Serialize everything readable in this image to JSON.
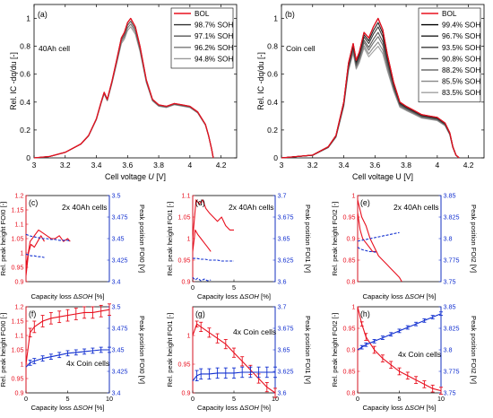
{
  "chart_data": [
    {
      "id": "a",
      "type": "line",
      "panel_label": "(a)",
      "annotation": "40Ah cell",
      "xlabel": "Cell voltage ",
      "xlabel_var": "U",
      "xlabel_unit": " [V]",
      "ylabel": "Rel. IC -dq/du [-]",
      "xlim": [
        3,
        4.3
      ],
      "ylim": [
        0,
        1.1
      ],
      "xticks": [
        "3",
        "3.2",
        "3.4",
        "3.6",
        "3.8",
        "4",
        "4.2"
      ],
      "yticks": [
        "0",
        "0.2",
        "0.4",
        "0.6",
        "0.8",
        "1"
      ],
      "legend_position": "top-right",
      "series": [
        {
          "name": "BOL",
          "color": "#e8101f",
          "peak_scale": 1.0
        },
        {
          "name": "98.7% SOH",
          "color": "#303030",
          "peak_scale": 1.0
        },
        {
          "name": "97.1% SOH",
          "color": "#555555",
          "peak_scale": 0.98
        },
        {
          "name": "96.2% SOH",
          "color": "#777777",
          "peak_scale": 0.96
        },
        {
          "name": "94.8% SOH",
          "color": "#999999",
          "peak_scale": 0.94
        }
      ],
      "x": [
        3.0,
        3.1,
        3.2,
        3.3,
        3.35,
        3.4,
        3.43,
        3.45,
        3.47,
        3.5,
        3.53,
        3.56,
        3.58,
        3.6,
        3.62,
        3.65,
        3.68,
        3.72,
        3.76,
        3.8,
        3.85,
        3.9,
        3.95,
        4.0,
        4.05,
        4.1,
        4.12,
        4.14,
        4.15
      ],
      "base_values": [
        0.0,
        0.01,
        0.04,
        0.1,
        0.16,
        0.28,
        0.4,
        0.47,
        0.42,
        0.55,
        0.7,
        0.86,
        0.9,
        0.97,
        1.0,
        0.94,
        0.8,
        0.56,
        0.42,
        0.38,
        0.37,
        0.39,
        0.38,
        0.37,
        0.33,
        0.24,
        0.16,
        0.06,
        0.0
      ]
    },
    {
      "id": "b",
      "type": "line",
      "panel_label": "(b)",
      "annotation": "Coin cell",
      "xlabel": "Cell voltage U [V]",
      "ylabel": "Rel. IC -dq/du [-]",
      "xlim": [
        3,
        4.3
      ],
      "ylim": [
        0,
        1.1
      ],
      "xticks": [
        "3",
        "3.2",
        "3.4",
        "3.6",
        "3.8",
        "4",
        "4.2"
      ],
      "yticks": [
        "0",
        "0.2",
        "0.4",
        "0.6",
        "0.8",
        "1"
      ],
      "legend_position": "top-right",
      "series": [
        {
          "name": "BOL",
          "color": "#e8101f",
          "peak_scale": 1.0
        },
        {
          "name": "99.4% SOH",
          "color": "#000000",
          "peak_scale": 1.0
        },
        {
          "name": "96.7% SOH",
          "color": "#1e1e1e",
          "peak_scale": 0.97
        },
        {
          "name": "93.5% SOH",
          "color": "#3a3a3a",
          "peak_scale": 0.94
        },
        {
          "name": "90.8% SOH",
          "color": "#555555",
          "peak_scale": 0.9
        },
        {
          "name": "88.2% SOH",
          "color": "#6e6e6e",
          "peak_scale": 0.87
        },
        {
          "name": "85.5% SOH",
          "color": "#888888",
          "peak_scale": 0.83
        },
        {
          "name": "83.5% SOH",
          "color": "#a0a0a0",
          "peak_scale": 0.8
        }
      ],
      "x": [
        3.0,
        3.2,
        3.3,
        3.35,
        3.4,
        3.43,
        3.46,
        3.48,
        3.5,
        3.53,
        3.56,
        3.59,
        3.62,
        3.65,
        3.68,
        3.72,
        3.76,
        3.8,
        3.85,
        3.9,
        3.95,
        4.0,
        4.05,
        4.08,
        4.1,
        4.12,
        4.14
      ],
      "base_values": [
        0.0,
        0.02,
        0.08,
        0.16,
        0.4,
        0.68,
        0.82,
        0.7,
        0.76,
        0.9,
        0.86,
        0.94,
        1.0,
        0.92,
        0.74,
        0.54,
        0.4,
        0.37,
        0.34,
        0.31,
        0.3,
        0.29,
        0.25,
        0.18,
        0.08,
        0.02,
        0.0
      ]
    },
    {
      "id": "c",
      "type": "line",
      "panel_label": "(c)",
      "annotation": "2x 40Ah cells",
      "xlabel": "Capacity loss Δ",
      "xlabel_var": "SOH",
      "xlabel_unit": " [%]",
      "ylabel_left": "Rel. peak height FOI0 [-]",
      "ylabel_right": "Peak position FOI0 [V]",
      "xlim": [
        0,
        10
      ],
      "ylim_left": [
        0.9,
        1.2
      ],
      "ylim_right": [
        3.4,
        3.5
      ],
      "xticks": [],
      "yticks_left": [
        "0.9",
        "0.95",
        "1",
        "1.05",
        "1.1",
        "1.15",
        "1.2"
      ],
      "yticks_right": [
        "3.4",
        "3.425",
        "3.45",
        "3.475",
        "3.5"
      ],
      "left_series": [
        {
          "x": [
            0,
            0.5,
            1,
            1.5,
            2,
            2.5,
            3,
            3.5,
            4,
            4.5,
            5,
            5.3
          ],
          "y": [
            0.95,
            1.04,
            1.06,
            1.08,
            1.07,
            1.06,
            1.05,
            1.05,
            1.06,
            1.04,
            1.05,
            1.04
          ]
        },
        {
          "x": [
            0,
            0.3,
            0.6,
            1,
            1.4,
            1.8,
            2.2
          ],
          "y": [
            0.92,
            1.0,
            1.03,
            1.02,
            1.04,
            1.06,
            1.04
          ]
        }
      ],
      "right_series": [
        {
          "x": [
            0,
            0.5,
            1,
            1.5,
            2,
            2.5,
            3,
            3.5,
            4,
            4.5,
            5,
            5.3
          ],
          "y": [
            3.455,
            3.453,
            3.452,
            3.451,
            3.45,
            3.45,
            3.449,
            3.449,
            3.448,
            3.448,
            3.448,
            3.447
          ]
        },
        {
          "x": [
            0,
            0.3,
            0.6,
            1,
            1.4,
            1.8,
            2.2
          ],
          "y": [
            3.432,
            3.431,
            3.43,
            3.43,
            3.429,
            3.429,
            3.428
          ]
        }
      ]
    },
    {
      "id": "d",
      "type": "line",
      "panel_label": "(d)",
      "annotation": "2x 40Ah cells",
      "xlabel": "Capacity loss Δ",
      "xlabel_var": "SOH",
      "xlabel_unit": " [%]",
      "ylabel_left": "Rel. peak height FOI1 [-]",
      "ylabel_right": "Peak position FOI1 [V]",
      "xlim": [
        0,
        10
      ],
      "ylim_left": [
        0.9,
        1.1
      ],
      "ylim_right": [
        3.6,
        3.7
      ],
      "xticks": [
        "0",
        "5"
      ],
      "yticks_left": [
        "0.9",
        "0.95",
        "1",
        "1.05",
        "1.1"
      ],
      "yticks_right": [
        "3.6",
        "3.625",
        "3.65",
        "3.675",
        "3.7"
      ],
      "left_series": [
        {
          "x": [
            0,
            0.4,
            0.8,
            1.2,
            1.6,
            2,
            2.5,
            3,
            3.5,
            4,
            4.5,
            5
          ],
          "y": [
            1.0,
            1.09,
            1.08,
            1.09,
            1.07,
            1.06,
            1.05,
            1.04,
            1.05,
            1.03,
            1.02,
            1.02
          ]
        },
        {
          "x": [
            0,
            0.3,
            0.6,
            1,
            1.4,
            1.8,
            2.2
          ],
          "y": [
            0.97,
            1.02,
            1.01,
            1.0,
            0.99,
            0.98,
            0.97
          ]
        }
      ],
      "right_series": [
        {
          "x": [
            0,
            0.5,
            1,
            1.5,
            2,
            2.5,
            3,
            3.5,
            4,
            4.5,
            5
          ],
          "y": [
            3.627,
            3.627,
            3.626,
            3.626,
            3.625,
            3.625,
            3.625,
            3.624,
            3.624,
            3.624,
            3.624
          ]
        },
        {
          "x": [
            0,
            0.3,
            0.6,
            1,
            1.4,
            1.8,
            2.2
          ],
          "y": [
            3.605,
            3.602,
            3.604,
            3.601,
            3.603,
            3.601,
            3.602
          ]
        }
      ]
    },
    {
      "id": "e",
      "type": "line",
      "panel_label": "(e)",
      "annotation": "2x 40Ah cells",
      "xlabel": "Capacity loss Δ",
      "xlabel_var": "SOH",
      "xlabel_unit": " [%]",
      "ylabel_left": "Rel. peak height FOI2 [-]",
      "ylabel_right": "Peak position FOI2 [V]",
      "xlim": [
        0,
        10
      ],
      "ylim_left": [
        0.8,
        1.0
      ],
      "ylim_right": [
        3.75,
        3.85
      ],
      "xticks": [],
      "yticks_left": [
        "0.8",
        "0.85",
        "0.9",
        "0.95",
        "1"
      ],
      "yticks_right": [
        "3.75",
        "3.775",
        "3.8",
        "3.825",
        "3.85"
      ],
      "left_series": [
        {
          "x": [
            0,
            0.5,
            1,
            1.5,
            2,
            2.5,
            3,
            3.5,
            4,
            4.5,
            5,
            5.3
          ],
          "y": [
            0.99,
            0.95,
            0.93,
            0.9,
            0.88,
            0.86,
            0.85,
            0.84,
            0.83,
            0.82,
            0.81,
            0.8
          ]
        },
        {
          "x": [
            0,
            0.3,
            0.6,
            1,
            1.4,
            1.8,
            2.2
          ],
          "y": [
            0.96,
            0.92,
            0.9,
            0.89,
            0.88,
            0.87,
            0.87
          ]
        }
      ],
      "right_series": [
        {
          "x": [
            0,
            0.5,
            1,
            1.5,
            2,
            2.5,
            3,
            3.5,
            4,
            4.5,
            5
          ],
          "y": [
            3.797,
            3.798,
            3.799,
            3.8,
            3.801,
            3.802,
            3.803,
            3.804,
            3.805,
            3.806,
            3.807
          ]
        },
        {
          "x": [
            0,
            0.3,
            0.6,
            1,
            1.4,
            1.8,
            2.2
          ],
          "y": [
            3.79,
            3.788,
            3.787,
            3.786,
            3.785,
            3.785,
            3.784
          ]
        }
      ]
    },
    {
      "id": "f",
      "type": "line",
      "panel_label": "(f)",
      "annotation": "4x Coin cells",
      "xlabel": "Capacity loss Δ",
      "xlabel_var": "SOH",
      "xlabel_unit": " [%]",
      "ylabel_left": "Rel. peak height FOI0 [-]",
      "ylabel_right": "Peak position FOI0 [V]",
      "xlim": [
        0,
        10
      ],
      "ylim_left": [
        0.9,
        1.2
      ],
      "ylim_right": [
        3.4,
        3.5
      ],
      "xticks": [
        "0",
        "5",
        "10"
      ],
      "yticks_left": [
        "0.9",
        "0.95",
        "1",
        "1.05",
        "1.1",
        "1.15",
        "1.2"
      ],
      "yticks_right": [
        "3.4",
        "3.425",
        "3.45",
        "3.475",
        "3.5"
      ],
      "left_series": [
        {
          "x": [
            0,
            0.5,
            1,
            2,
            3,
            4,
            5,
            6,
            7,
            8,
            9,
            10
          ],
          "y": [
            1.0,
            1.11,
            1.13,
            1.15,
            1.16,
            1.165,
            1.17,
            1.175,
            1.18,
            1.18,
            1.185,
            1.19
          ],
          "err": [
            0,
            0.015,
            0.02,
            0.02,
            0.02,
            0.02,
            0.02,
            0.02,
            0.02,
            0.02,
            0.02,
            0.02
          ]
        }
      ],
      "right_series": [
        {
          "x": [
            0,
            0.5,
            1,
            2,
            3,
            4,
            5,
            6,
            7,
            8,
            9,
            10
          ],
          "y": [
            3.43,
            3.435,
            3.437,
            3.44,
            3.442,
            3.444,
            3.446,
            3.447,
            3.448,
            3.449,
            3.45,
            3.45
          ],
          "err": [
            0,
            0.003,
            0.003,
            0.003,
            0.003,
            0.003,
            0.003,
            0.003,
            0.003,
            0.003,
            0.003,
            0.003
          ]
        }
      ]
    },
    {
      "id": "g",
      "type": "line",
      "panel_label": "(g)",
      "annotation": "4x Coin cells",
      "xlabel": "Capacity loss Δ",
      "xlabel_var": "SOH",
      "xlabel_unit": " [%]",
      "ylabel_left": "Rel. peak height FOI1 [-]",
      "ylabel_right": "Peak position FOI1 [V]",
      "xlim": [
        0,
        10
      ],
      "ylim_left": [
        0.9,
        1.05
      ],
      "ylim_right": [
        3.6,
        3.7
      ],
      "xticks": [
        "0",
        "5",
        "10"
      ],
      "yticks_left": [
        "0.9",
        "0.95",
        "1"
      ],
      "yticks_right": [
        "3.6",
        "3.625",
        "3.65",
        "3.675",
        "3.7"
      ],
      "left_series": [
        {
          "x": [
            0,
            0.5,
            1,
            2,
            3,
            4,
            5,
            6,
            7,
            8,
            9,
            10
          ],
          "y": [
            1.0,
            1.02,
            1.015,
            1.005,
            0.995,
            0.985,
            0.97,
            0.955,
            0.94,
            0.925,
            0.91,
            0.9
          ],
          "err": [
            0,
            0.005,
            0.008,
            0.008,
            0.008,
            0.008,
            0.008,
            0.008,
            0.008,
            0.008,
            0.008,
            0.008
          ]
        }
      ],
      "right_series": [
        {
          "x": [
            0,
            0.5,
            1,
            2,
            3,
            4,
            5,
            6,
            7,
            8,
            9,
            10
          ],
          "y": [
            3.614,
            3.62,
            3.622,
            3.622,
            3.623,
            3.623,
            3.623,
            3.624,
            3.624,
            3.624,
            3.624,
            3.624
          ],
          "err": [
            0,
            0.006,
            0.006,
            0.006,
            0.006,
            0.006,
            0.006,
            0.006,
            0.006,
            0.006,
            0.006,
            0.006
          ]
        }
      ]
    },
    {
      "id": "h",
      "type": "line",
      "panel_label": "(h)",
      "annotation": "4x Coin cells",
      "xlabel": "Capacity loss Δ",
      "xlabel_var": "SOH",
      "xlabel_unit": " [%]",
      "ylabel_left": "Rel. peak height FOI2 [-]",
      "ylabel_right": "Peak position FOI2 [V]",
      "xlim": [
        0,
        10
      ],
      "ylim_left": [
        0.8,
        1.0
      ],
      "ylim_right": [
        3.75,
        3.85
      ],
      "xticks": [
        "0",
        "5",
        "10"
      ],
      "yticks_left": [
        "0.8",
        "0.85",
        "0.9",
        "0.95",
        "1"
      ],
      "yticks_right": [
        "3.75",
        "3.775",
        "3.8",
        "3.825",
        "3.85"
      ],
      "left_series": [
        {
          "x": [
            0,
            0.5,
            1,
            2,
            3,
            4,
            5,
            6,
            7,
            8,
            9,
            10
          ],
          "y": [
            1.0,
            0.96,
            0.93,
            0.9,
            0.88,
            0.865,
            0.85,
            0.84,
            0.83,
            0.82,
            0.81,
            0.805
          ],
          "err": [
            0,
            0.005,
            0.008,
            0.008,
            0.008,
            0.008,
            0.008,
            0.008,
            0.008,
            0.008,
            0.008,
            0.008
          ]
        }
      ],
      "right_series": [
        {
          "x": [
            0,
            0.5,
            1,
            2,
            3,
            4,
            5,
            6,
            7,
            8,
            9,
            10
          ],
          "y": [
            3.8,
            3.803,
            3.806,
            3.81,
            3.814,
            3.818,
            3.822,
            3.826,
            3.83,
            3.834,
            3.838,
            3.842
          ],
          "err": [
            0,
            0.002,
            0.002,
            0.002,
            0.002,
            0.002,
            0.002,
            0.002,
            0.002,
            0.002,
            0.002,
            0.002
          ]
        }
      ]
    }
  ],
  "colors": {
    "red": "#e8101f",
    "blue": "#1230d0",
    "axis": "#000000"
  }
}
